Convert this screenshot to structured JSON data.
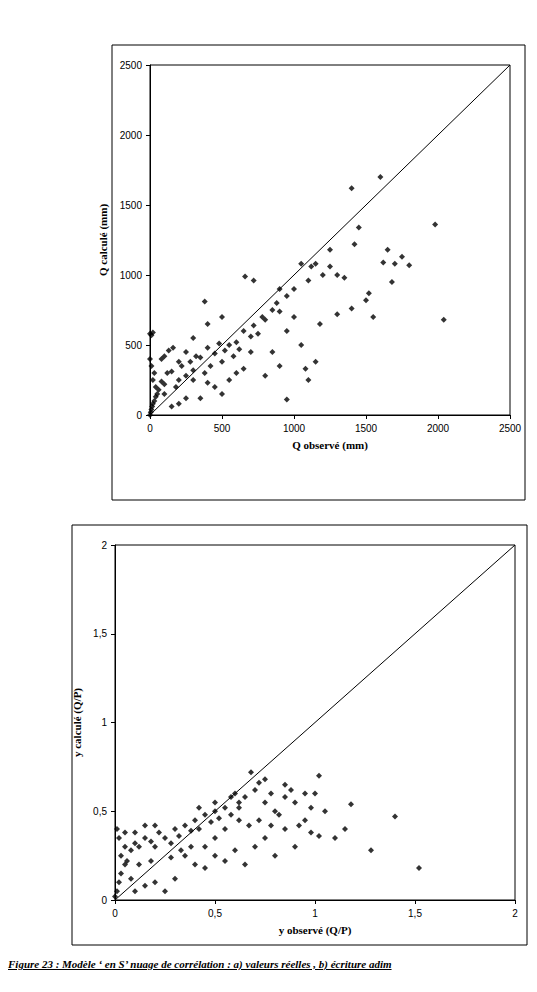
{
  "chart_data": [
    {
      "type": "scatter",
      "x_label": "Q observé (mm)",
      "y_label": "Q calculé (mm)",
      "xlim": [
        0,
        2500
      ],
      "ylim": [
        0,
        2500
      ],
      "xticks": [
        0,
        500,
        1000,
        1500,
        2000,
        2500
      ],
      "yticks": [
        0,
        500,
        1000,
        1500,
        2000,
        2500
      ],
      "grid": false,
      "series": [
        {
          "type": "scatter",
          "color": "#000000",
          "marker": "diamond",
          "x": [
            0,
            5,
            10,
            15,
            20,
            30,
            40,
            50,
            0,
            10,
            20,
            0,
            10,
            30,
            20,
            40,
            60,
            80,
            100,
            120,
            150,
            180,
            200,
            220,
            250,
            80,
            100,
            130,
            160,
            200,
            250,
            280,
            300,
            320,
            350,
            380,
            400,
            420,
            450,
            480,
            500,
            520,
            550,
            580,
            600,
            620,
            650,
            700,
            720,
            750,
            780,
            800,
            850,
            880,
            900,
            950,
            1000,
            1050,
            1100,
            1150,
            1200,
            1250,
            1300,
            1350,
            1400,
            1420,
            1450,
            1500,
            1520,
            1550,
            1600,
            1620,
            1650,
            1680,
            1700,
            1750,
            1800,
            1980,
            2040,
            1400,
            1300,
            1100,
            1080,
            950,
            900,
            850,
            800,
            700,
            650,
            600,
            550,
            500,
            450,
            400,
            350,
            300,
            250,
            200,
            150,
            100,
            380,
            660,
            720,
            500,
            400,
            300,
            1120,
            1180,
            1250,
            1000,
            950,
            1050,
            1150,
            900
          ],
          "values": [
            0,
            20,
            40,
            60,
            80,
            100,
            130,
            150,
            580,
            570,
            590,
            400,
            350,
            300,
            250,
            200,
            180,
            240,
            220,
            300,
            310,
            200,
            250,
            350,
            280,
            400,
            420,
            460,
            480,
            380,
            450,
            380,
            320,
            420,
            410,
            300,
            480,
            350,
            440,
            510,
            380,
            460,
            500,
            420,
            520,
            470,
            600,
            560,
            640,
            580,
            700,
            680,
            750,
            800,
            740,
            850,
            900,
            1080,
            960,
            1080,
            1000,
            1180,
            1000,
            980,
            1620,
            1220,
            1340,
            820,
            870,
            700,
            1700,
            1090,
            1180,
            950,
            1080,
            1130,
            1070,
            1360,
            680,
            760,
            720,
            250,
            330,
            110,
            350,
            450,
            280,
            450,
            330,
            300,
            250,
            150,
            200,
            230,
            120,
            250,
            120,
            80,
            60,
            150,
            810,
            990,
            960,
            700,
            650,
            550,
            1060,
            650,
            1060,
            700,
            600,
            500,
            380,
            900
          ]
        },
        {
          "type": "line",
          "color": "#000000",
          "line_style": "solid",
          "x": [
            0,
            2500
          ],
          "values": [
            0,
            2500
          ]
        }
      ]
    },
    {
      "type": "scatter",
      "x_label": "y observé (Q/P)",
      "y_label": "y calculé (Q/P)",
      "xlim": [
        0,
        2
      ],
      "ylim": [
        0,
        2
      ],
      "xticks": [
        0,
        {
          "value": 0.5,
          "label": "0,5"
        },
        1,
        {
          "value": 1.5,
          "label": "1,5"
        },
        2
      ],
      "yticks": [
        0,
        {
          "value": 0.5,
          "label": "0,5"
        },
        1,
        {
          "value": 1.5,
          "label": "1,5"
        },
        2
      ],
      "grid": false,
      "series": [
        {
          "type": "scatter",
          "color": "#000000",
          "marker": "diamond",
          "x": [
            0,
            0.01,
            0.02,
            0.03,
            0.05,
            0.01,
            0.02,
            0.03,
            0.05,
            0.08,
            0.1,
            0.12,
            0.15,
            0.18,
            0.2,
            0.22,
            0.25,
            0.28,
            0.3,
            0.32,
            0.35,
            0.38,
            0.4,
            0.42,
            0.45,
            0.48,
            0.5,
            0.52,
            0.55,
            0.58,
            0.6,
            0.62,
            0.65,
            0.68,
            0.7,
            0.72,
            0.75,
            0.78,
            0.8,
            0.85,
            0.88,
            0.9,
            0.95,
            0.98,
            1.0,
            1.02,
            1.05,
            1.1,
            1.15,
            1.18,
            1.28,
            1.4,
            1.52,
            1.02,
            0.95,
            0.9,
            0.85,
            0.8,
            0.75,
            0.7,
            0.65,
            0.6,
            0.55,
            0.5,
            0.45,
            0.4,
            0.35,
            0.3,
            0.25,
            0.2,
            0.15,
            0.1,
            0.08,
            0.12,
            0.06,
            0.18,
            0.28,
            0.5,
            0.55,
            0.62,
            0.67,
            0.72,
            0.78,
            0.82,
            0.92,
            0.98,
            0.45,
            0.38,
            0.33,
            0.42,
            0.5,
            0.58,
            0.62,
            0.2,
            0.1,
            0.15,
            0.05,
            0.75,
            0.85
          ],
          "values": [
            0.02,
            0.05,
            0.1,
            0.15,
            0.2,
            0.4,
            0.35,
            0.25,
            0.3,
            0.28,
            0.32,
            0.3,
            0.35,
            0.33,
            0.3,
            0.38,
            0.35,
            0.32,
            0.4,
            0.36,
            0.42,
            0.39,
            0.45,
            0.4,
            0.48,
            0.44,
            0.5,
            0.46,
            0.52,
            0.48,
            0.6,
            0.55,
            0.58,
            0.72,
            0.62,
            0.66,
            0.55,
            0.6,
            0.5,
            0.58,
            0.62,
            0.55,
            0.6,
            0.52,
            0.6,
            0.7,
            0.5,
            0.35,
            0.4,
            0.54,
            0.28,
            0.47,
            0.18,
            0.36,
            0.45,
            0.3,
            0.4,
            0.25,
            0.35,
            0.3,
            0.2,
            0.28,
            0.22,
            0.25,
            0.18,
            0.2,
            0.25,
            0.12,
            0.05,
            0.1,
            0.08,
            0.05,
            0.12,
            0.2,
            0.22,
            0.22,
            0.24,
            0.35,
            0.4,
            0.45,
            0.42,
            0.45,
            0.42,
            0.48,
            0.42,
            0.38,
            0.3,
            0.3,
            0.28,
            0.52,
            0.55,
            0.58,
            0.52,
            0.42,
            0.38,
            0.42,
            0.38,
            0.68,
            0.65
          ]
        },
        {
          "type": "line",
          "color": "#000000",
          "line_style": "solid",
          "x": [
            0,
            2
          ],
          "values": [
            0,
            2
          ]
        }
      ]
    }
  ],
  "caption": "Figure 23 : Modèle ‘ en S’  nuage de corrélation :  a) valeurs réelles , b) écriture adim"
}
